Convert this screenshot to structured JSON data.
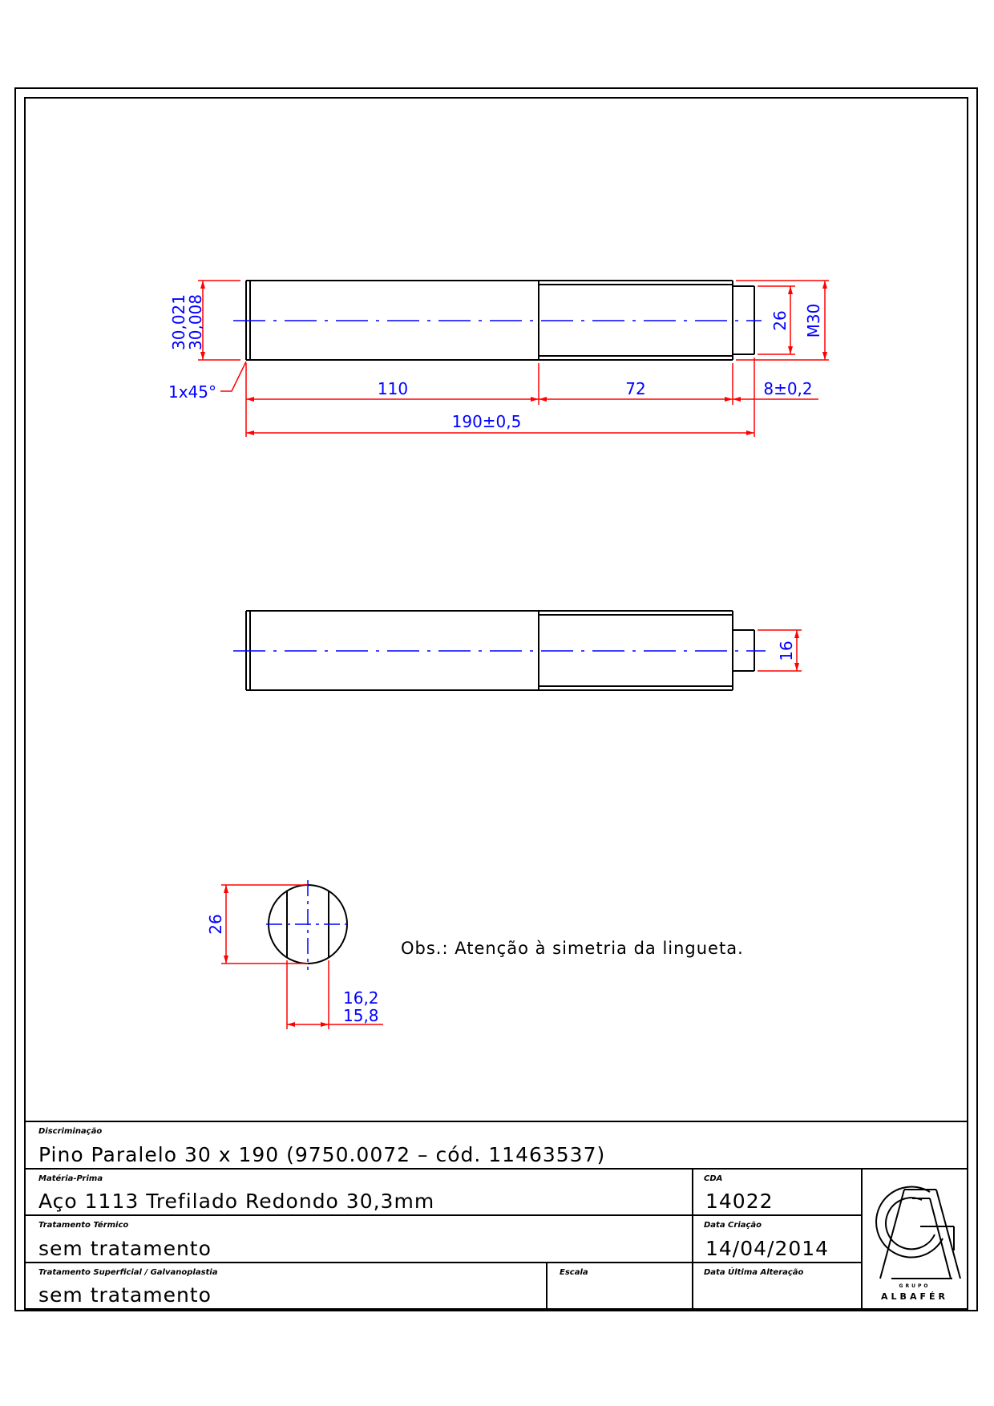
{
  "colors": {
    "outline": "#000000",
    "dimension": "#ff0000",
    "dimension_text": "#0000ff",
    "centerline": "#0000ff"
  },
  "drawing": {
    "front_view": {
      "dia_tol_upper": "30,021",
      "dia_tol_lower": "30,008",
      "chamfer": "1x45°",
      "len_110": "110",
      "len_72": "72",
      "len_8": "8±0,2",
      "total_length": "190±0,5",
      "dia_26": "26",
      "thread": "M30"
    },
    "middle_view": {
      "dim_16": "16"
    },
    "end_view": {
      "dim_26": "26",
      "key_upper": "16,2",
      "key_lower": "15,8"
    },
    "note": "Obs.: Atenção à simetria da lingueta."
  },
  "title_block": {
    "discriminacao_label": "Discriminação",
    "discriminacao": "Pino Paralelo 30 x 190 (9750.0072 – cód. 11463537)",
    "materia_prima_label": "Matéria-Prima",
    "materia_prima": "Aço 1113 Trefilado Redondo 30,3mm",
    "tratamento_termico_label": "Tratamento Térmico",
    "tratamento_termico": "sem tratamento",
    "tratamento_superficial_label": "Tratamento Superficial / Galvanoplastia",
    "tratamento_superficial": "sem tratamento",
    "escala_label": "Escala",
    "escala": "",
    "cda_label": "CDA",
    "cda": "14022",
    "data_criacao_label": "Data Criação",
    "data_criacao": "14/04/2014",
    "data_alteracao_label": "Data Última Alteração",
    "data_alteracao": "",
    "logo_text": "ALBAFÉR",
    "logo_small": "GRUPO"
  }
}
